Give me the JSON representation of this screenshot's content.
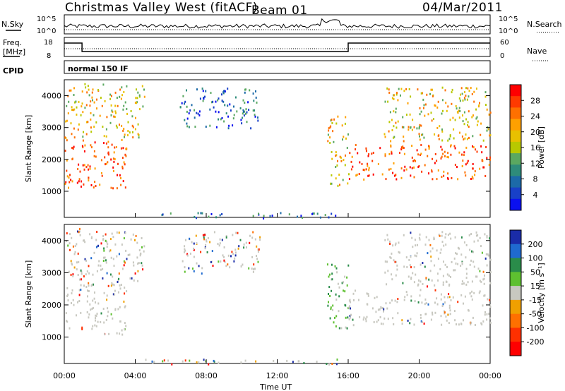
{
  "header": {
    "station": "Christmas Valley West (fitACF)",
    "beam": "Beam 01",
    "date": "04/Mar/2011"
  },
  "params": {
    "nsky_label": "N.Sky",
    "nsearch_label": "N.Search",
    "freq_label_1": "Freq.",
    "freq_label_2": "[MHz]",
    "nave_label": "Nave",
    "cpid_label": "CPID",
    "cpid_value": "normal 150 IF",
    "noise_ticks_left": [
      "10^5",
      "10^0"
    ],
    "noise_ticks_right": [
      "10^5",
      "10^0"
    ],
    "freq_ticks": [
      "18",
      "8"
    ],
    "nave_ticks": [
      "60",
      "0"
    ]
  },
  "chart_data": [
    {
      "type": "heatmap",
      "name": "power",
      "ylabel": "Slant Range [km]",
      "xlabel": "",
      "ylim": [
        180,
        4500
      ],
      "yticks": [
        1000,
        2000,
        3000,
        4000
      ],
      "colorbar": {
        "label": "Power [dB]",
        "ticks": [
          "28",
          "24",
          "20",
          "16",
          "12",
          "8",
          "4"
        ],
        "colors": [
          "#ff0000",
          "#ff3a00",
          "#ff7000",
          "#ffa000",
          "#e8c000",
          "#b8c800",
          "#5aa860",
          "#2e8c7a",
          "#1c6aa8",
          "#1840c8",
          "#0a10f0"
        ]
      },
      "regions": [
        {
          "t": [
            0.0,
            3.5
          ],
          "r": [
            1100,
            2700
          ],
          "level": "high"
        },
        {
          "t": [
            0.0,
            4.5
          ],
          "r": [
            2700,
            4400
          ],
          "level": "mid"
        },
        {
          "t": [
            6.5,
            11.0
          ],
          "r": [
            3000,
            4300
          ],
          "level": "low"
        },
        {
          "t": [
            14.8,
            16.0
          ],
          "r": [
            1200,
            3400
          ],
          "level": "mid"
        },
        {
          "t": [
            16.0,
            24.0
          ],
          "r": [
            1400,
            2500
          ],
          "level": "high"
        },
        {
          "t": [
            18.0,
            24.0
          ],
          "r": [
            2600,
            4300
          ],
          "level": "mid"
        },
        {
          "t": [
            4.5,
            15.5
          ],
          "r": [
            180,
            350
          ],
          "level": "low"
        }
      ]
    },
    {
      "type": "heatmap",
      "name": "velocity",
      "xlabel": "Time UT",
      "ylabel": "Slant Range [km]",
      "ylim": [
        180,
        4500
      ],
      "yticks": [
        1000,
        2000,
        3000,
        4000
      ],
      "xlim": [
        0,
        24
      ],
      "xticks": [
        "00:00",
        "04:00",
        "08:00",
        "12:00",
        "16:00",
        "20:00",
        "00:00"
      ],
      "colorbar": {
        "label": "Velocity [m s⁻¹]",
        "ticks": [
          "200",
          "100",
          "50",
          "15",
          "-15",
          "-50",
          "-100",
          "-200"
        ],
        "colors": [
          "#1a2ca8",
          "#1f6ad0",
          "#2a8c4a",
          "#5ec030",
          "#c8c8c0",
          "#f0a000",
          "#ff7000",
          "#ff3000",
          "#ff0000"
        ]
      },
      "regions": [
        {
          "t": [
            0.0,
            3.5
          ],
          "r": [
            1100,
            2700
          ],
          "level": "ground"
        },
        {
          "t": [
            0.0,
            4.5
          ],
          "r": [
            2700,
            4400
          ],
          "level": "mixed"
        },
        {
          "t": [
            6.5,
            11.0
          ],
          "r": [
            3000,
            4300
          ],
          "level": "mixed"
        },
        {
          "t": [
            14.8,
            16.0
          ],
          "r": [
            1200,
            3400
          ],
          "level": "pos"
        },
        {
          "t": [
            16.0,
            24.0
          ],
          "r": [
            1400,
            2500
          ],
          "level": "ground"
        },
        {
          "t": [
            18.0,
            24.0
          ],
          "r": [
            2600,
            4300
          ],
          "level": "ground"
        },
        {
          "t": [
            4.5,
            15.5
          ],
          "r": [
            180,
            350
          ],
          "level": "mixed"
        }
      ]
    }
  ],
  "colors": {
    "ground_scatter": "#c8c8c0",
    "frame": "#000000"
  }
}
